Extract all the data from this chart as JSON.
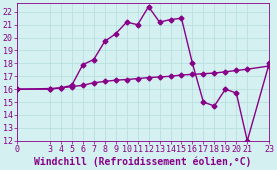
{
  "xlabel": "Windchill (Refroidissement éolien,°C)",
  "background_color": "#d4f0f0",
  "grid_color": "#b8e0e0",
  "line_color": "#880088",
  "xlim": [
    0,
    23
  ],
  "ylim": [
    12,
    22.7
  ],
  "yticks": [
    12,
    13,
    14,
    15,
    16,
    17,
    18,
    19,
    20,
    21,
    22
  ],
  "xticks": [
    0,
    3,
    4,
    5,
    6,
    7,
    8,
    9,
    10,
    11,
    12,
    13,
    14,
    15,
    16,
    17,
    18,
    19,
    20,
    21,
    23
  ],
  "curve1_x": [
    0,
    3,
    4,
    5,
    6,
    7,
    8,
    9,
    10,
    11,
    12,
    13,
    14,
    15,
    16,
    17,
    18,
    19,
    20,
    21,
    23
  ],
  "curve1_y": [
    16.0,
    16.0,
    16.1,
    16.3,
    17.9,
    18.3,
    19.7,
    20.3,
    21.2,
    21.0,
    22.4,
    21.2,
    21.4,
    21.5,
    18.0,
    15.0,
    14.7,
    16.0,
    15.7,
    12.0,
    18.0
  ],
  "curve2_x": [
    0,
    3,
    4,
    5,
    6,
    7,
    8,
    9,
    10,
    11,
    12,
    13,
    14,
    15,
    16,
    17,
    18,
    19,
    20,
    21,
    23
  ],
  "curve2_y": [
    16.0,
    16.05,
    16.1,
    16.2,
    16.3,
    16.5,
    16.6,
    16.7,
    16.75,
    16.82,
    16.9,
    16.95,
    17.0,
    17.1,
    17.15,
    17.2,
    17.25,
    17.35,
    17.45,
    17.55,
    17.8
  ],
  "marker": "D",
  "markersize": 2.5,
  "linewidth": 1.0,
  "xlabel_fontsize": 7,
  "tick_fontsize": 6,
  "figsize": [
    2.77,
    1.7
  ],
  "dpi": 100
}
